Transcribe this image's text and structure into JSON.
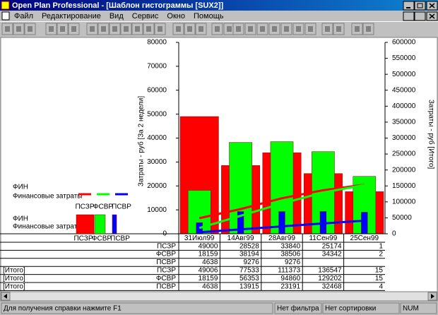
{
  "window": {
    "title": "Open Plan Professional - [Шаблон гистограммы [SUX2]]",
    "menu": [
      "Файл",
      "Редактирование",
      "Вид",
      "Сервис",
      "Окно",
      "Помощь"
    ]
  },
  "chart_data": {
    "type": "bar",
    "legend_title": "ФИН",
    "legend_subtitle": "Финансовые затраты",
    "categories": [
      "31Июл99",
      "14Авг99",
      "28Авг99",
      "11Сен99",
      "25Сен99"
    ],
    "ylabel": "Затраты - руб [За 2 недели]",
    "y2label": "Затраты - руб [Итого]",
    "ylim": [
      0,
      80000
    ],
    "yticks": [
      0,
      10000,
      20000,
      30000,
      40000,
      50000,
      60000,
      70000,
      80000
    ],
    "y2lim": [
      0,
      600000
    ],
    "y2ticks": [
      0,
      50000,
      100000,
      150000,
      200000,
      250000,
      300000,
      350000,
      400000,
      450000,
      500000,
      550000,
      600000
    ],
    "series": [
      {
        "name": "ПСЗР",
        "color": "#ff0000",
        "values": [
          49000,
          28528,
          33840,
          25174,
          17600
        ]
      },
      {
        "name": "ФСВР",
        "color": "#00ff00",
        "values": [
          18159,
          38194,
          38506,
          34342,
          24000
        ]
      },
      {
        "name": "ПСВР",
        "color": "#0000ff",
        "values": [
          4638,
          9276,
          9276,
          9300,
          9000
        ]
      }
    ],
    "line_series": [
      {
        "name": "ПСЗР",
        "color": "#ff0000",
        "axis": "y2",
        "values": [
          49006,
          77533,
          111373,
          136547,
          154000
        ]
      },
      {
        "name": "ФСВР",
        "color": "#00ff00",
        "axis": "y2",
        "values": [
          18159,
          56353,
          94860,
          129202,
          153000
        ]
      },
      {
        "name": "ПСВР",
        "color": "#0000ff",
        "axis": "y2",
        "values": [
          4638,
          13915,
          23191,
          32468,
          41000
        ]
      }
    ]
  },
  "table": {
    "rows": [
      {
        "name": "ПСЗР",
        "cells": [
          "49000",
          "28528",
          "33840",
          "25174",
          "1"
        ]
      },
      {
        "name": "ФСВР",
        "cells": [
          "18159",
          "38194",
          "38506",
          "34342",
          "2"
        ]
      },
      {
        "name": "ПСВР",
        "cells": [
          "4638",
          "9276",
          "9276",
          null,
          null
        ]
      },
      {
        "group": "[Итого]",
        "name": "ПСЗР",
        "cells": [
          "49006",
          "77533",
          "111373",
          "136547",
          "15"
        ]
      },
      {
        "group": "[Итого]",
        "name": "ФСВР",
        "cells": [
          "18159",
          "56353",
          "94860",
          "129202",
          "15"
        ]
      },
      {
        "group": "[Итого]",
        "name": "ПСВР",
        "cells": [
          "4638",
          "13915",
          "23191",
          "32468",
          "4"
        ]
      }
    ]
  },
  "status": [
    "Для получения справки нажмите F1",
    "Нет фильтра",
    "Нет сортировки",
    "NUM"
  ]
}
